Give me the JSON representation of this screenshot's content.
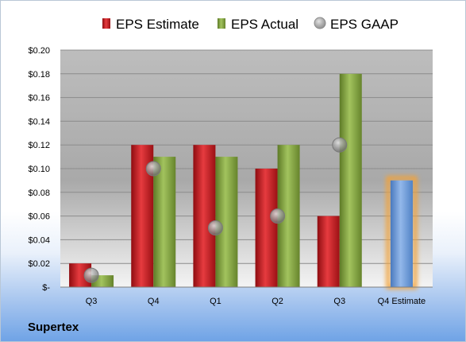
{
  "company_label": "Supertex",
  "chart_data": {
    "type": "bar",
    "title": "",
    "xlabel": "",
    "ylabel": "",
    "categories": [
      "Q3",
      "Q4",
      "Q1",
      "Q2",
      "Q3",
      "Q4 Estimate"
    ],
    "series": [
      {
        "name": "EPS Estimate",
        "type": "bar",
        "color": "#c0161b",
        "values": [
          0.02,
          0.12,
          0.12,
          0.1,
          0.06,
          null
        ]
      },
      {
        "name": "EPS Actual",
        "type": "bar",
        "color": "#7d9f3d",
        "values": [
          0.01,
          0.11,
          0.11,
          0.12,
          0.18,
          null
        ]
      },
      {
        "name": "EPS GAAP",
        "type": "marker",
        "color": "#9a9a9a",
        "values": [
          0.01,
          0.1,
          0.05,
          0.06,
          0.12,
          null
        ]
      }
    ],
    "estimate_bar": {
      "category": "Q4 Estimate",
      "value": 0.09,
      "color": "#6c9bd7",
      "glow": "#f2a33a"
    },
    "ylim": [
      0,
      0.2
    ],
    "yticks": [
      0,
      0.02,
      0.04,
      0.06,
      0.08,
      0.1,
      0.12,
      0.14,
      0.16,
      0.18,
      0.2
    ],
    "ytick_labels": [
      "$-",
      "$0.02",
      "$0.04",
      "$0.06",
      "$0.08",
      "$0.10",
      "$0.12",
      "$0.14",
      "$0.16",
      "$0.18",
      "$0.20"
    ],
    "grid": true,
    "legend_position": "top"
  }
}
